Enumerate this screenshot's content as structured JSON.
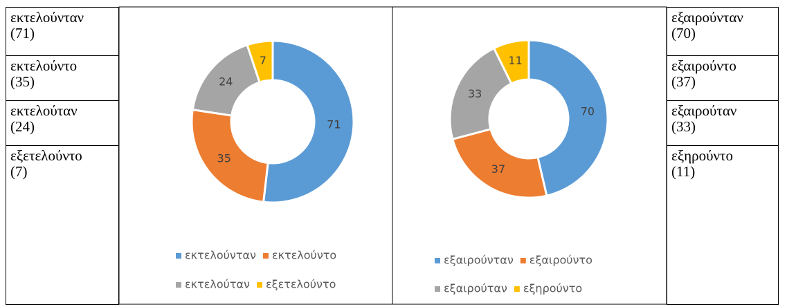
{
  "table": {
    "left": [
      {
        "word": "εκτελούνταν",
        "count": "(71)"
      },
      {
        "word": "εκτελούντο",
        "count": "(35)"
      },
      {
        "word": "εκτελούταν",
        "count": "(24)"
      },
      {
        "word": "εξετελούντο",
        "count": "(7)"
      }
    ],
    "right": [
      {
        "word": "εξαιρούνταν",
        "count": "(70)"
      },
      {
        "word": "εξαιρούντο",
        "count": "(37)"
      },
      {
        "word": "εξαιρούταν",
        "count": "(33)"
      },
      {
        "word": "εξηρούντο",
        "count": "(11)"
      }
    ]
  },
  "chart_data": [
    {
      "type": "pie",
      "categories": [
        "εκτελούνταν",
        "εκτελούντο",
        "εκτελούταν",
        "εξετελούντο"
      ],
      "values": [
        71,
        35,
        24,
        7
      ],
      "colors": [
        "#5b9bd5",
        "#ed7d31",
        "#a5a5a5",
        "#ffc000"
      ]
    },
    {
      "type": "pie",
      "categories": [
        "εξαιρούνταν",
        "εξαιρούντο",
        "εξαιρούταν",
        "εξηρούντο"
      ],
      "values": [
        70,
        37,
        33,
        11
      ],
      "colors": [
        "#5b9bd5",
        "#ed7d31",
        "#a5a5a5",
        "#ffc000"
      ]
    }
  ]
}
